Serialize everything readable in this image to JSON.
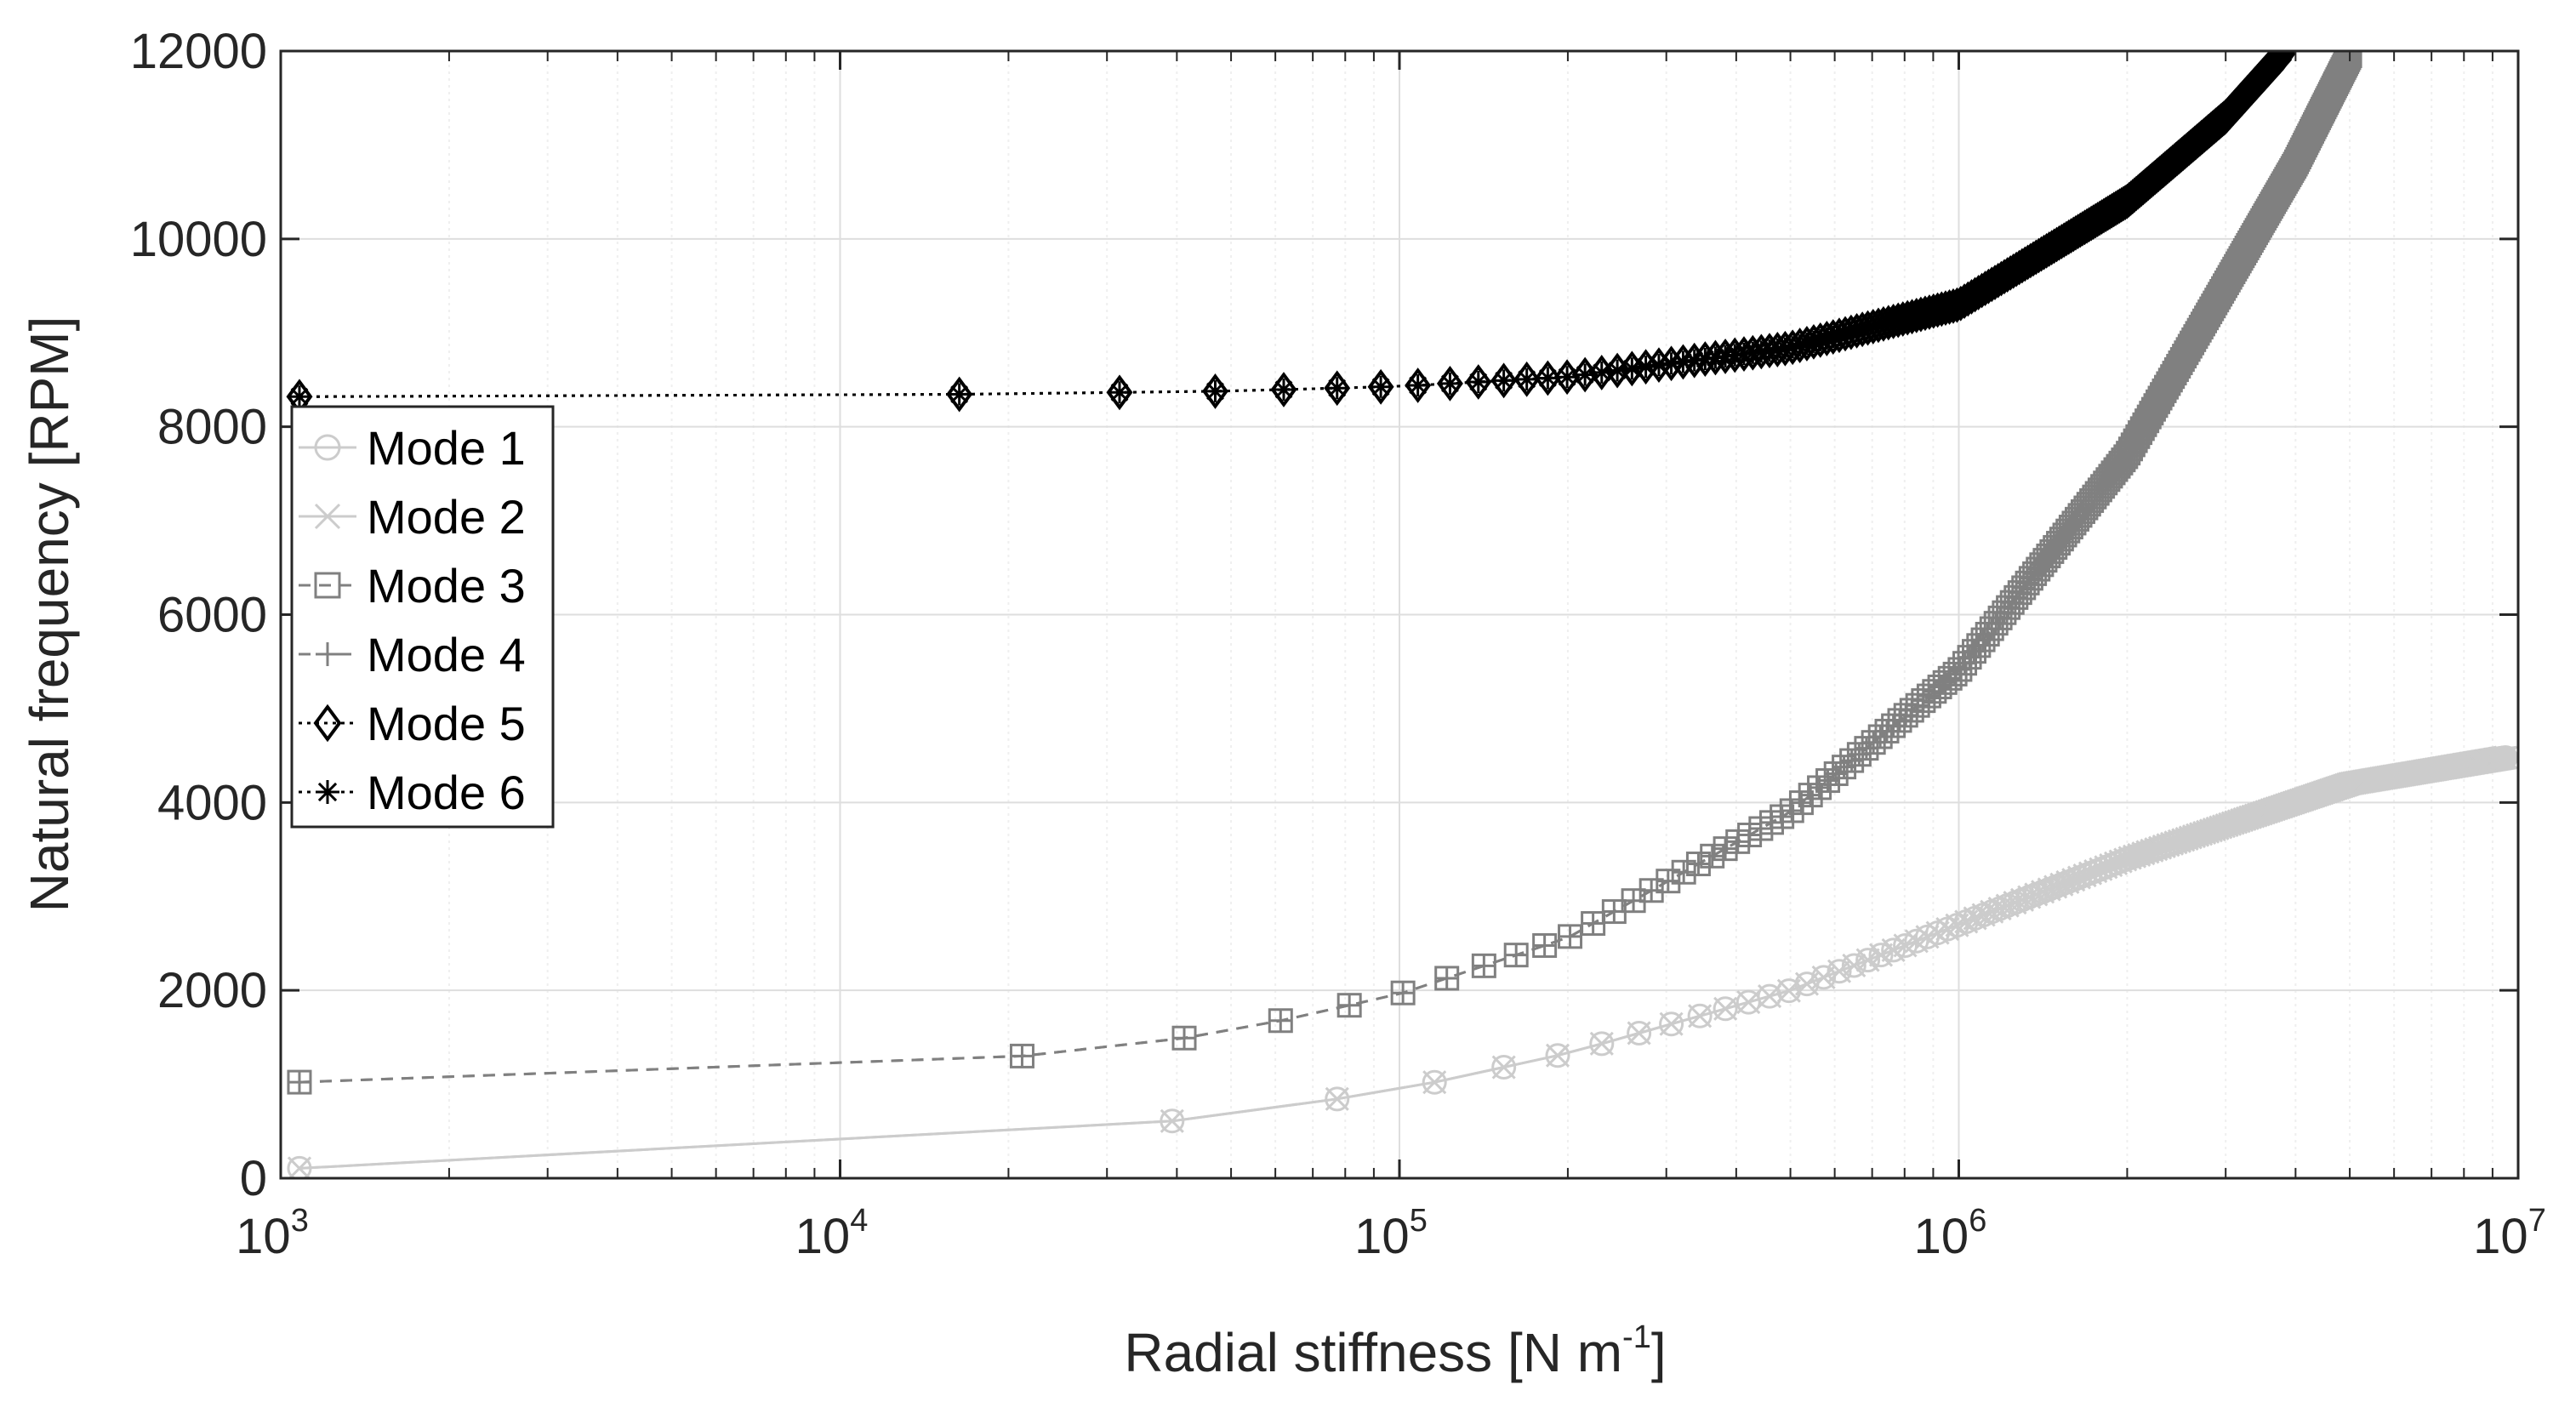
{
  "chart_data": {
    "type": "line",
    "title": "",
    "xlabel": "Radial stiffness [N m",
    "xlabel_exponent": "-1",
    "xlabel_suffix": "]",
    "ylabel": "Natural frequency [RPM]",
    "xscale": "log",
    "xlim": [
      1000,
      10000000
    ],
    "ylim": [
      0,
      12000
    ],
    "grid": true,
    "minor_grid": true,
    "legend_position": "left",
    "x_ticks": [
      {
        "value": 1000,
        "base": "10",
        "exp": "3"
      },
      {
        "value": 10000,
        "base": "10",
        "exp": "4"
      },
      {
        "value": 100000,
        "base": "10",
        "exp": "5"
      },
      {
        "value": 1000000,
        "base": "10",
        "exp": "6"
      },
      {
        "value": 10000000,
        "base": "10",
        "exp": "7"
      }
    ],
    "y_ticks": [
      {
        "value": 0,
        "label": "0"
      },
      {
        "value": 2000,
        "label": "2000"
      },
      {
        "value": 4000,
        "label": "4000"
      },
      {
        "value": 6000,
        "label": "6000"
      },
      {
        "value": 8000,
        "label": "8000"
      },
      {
        "value": 10000,
        "label": "10000"
      },
      {
        "value": 12000,
        "label": "12000"
      }
    ],
    "sample_count": 250,
    "series": [
      {
        "name": "Mode 1",
        "color": "#cccccc",
        "line_style": "solid",
        "marker": "circle",
        "x": [
          1000,
          5000,
          10000,
          30000,
          50000,
          100000,
          200000,
          500000,
          1000000,
          2000000,
          5000000,
          10000000
        ],
        "y": [
          100,
          200,
          280,
          530,
          680,
          940,
          1330,
          2000,
          2700,
          3400,
          4200,
          4500
        ]
      },
      {
        "name": "Mode 2",
        "color": "#cccccc",
        "line_style": "solid",
        "marker": "x",
        "x": [
          1000,
          5000,
          10000,
          30000,
          50000,
          100000,
          200000,
          500000,
          1000000,
          2000000,
          5000000,
          10000000
        ],
        "y": [
          100,
          200,
          280,
          530,
          680,
          940,
          1330,
          2000,
          2700,
          3400,
          4200,
          4500
        ]
      },
      {
        "name": "Mode 3",
        "color": "#808080",
        "line_style": "dashed",
        "marker": "square",
        "x": [
          1000,
          5000,
          10000,
          30000,
          50000,
          100000,
          200000,
          500000,
          1000000,
          2000000,
          4000000,
          5000000
        ],
        "y": [
          1020,
          1070,
          1130,
          1380,
          1560,
          1960,
          2560,
          3900,
          5400,
          7700,
          10800,
          11950
        ]
      },
      {
        "name": "Mode 4",
        "color": "#808080",
        "line_style": "dashed",
        "marker": "plus",
        "x": [
          1000,
          5000,
          10000,
          30000,
          50000,
          100000,
          200000,
          500000,
          1000000,
          2000000,
          4000000,
          5000000
        ],
        "y": [
          1020,
          1070,
          1130,
          1380,
          1560,
          1960,
          2560,
          3900,
          5400,
          7700,
          10800,
          11950
        ]
      },
      {
        "name": "Mode 5",
        "color": "#000000",
        "line_style": "dotted",
        "marker": "diamond",
        "x": [
          1000,
          10000,
          50000,
          100000,
          200000,
          500000,
          1000000,
          2000000,
          3000000,
          3800000
        ],
        "y": [
          8320,
          8330,
          8380,
          8430,
          8530,
          8840,
          9300,
          10400,
          11300,
          11980
        ]
      },
      {
        "name": "Mode 6",
        "color": "#000000",
        "line_style": "dotted",
        "marker": "asterisk",
        "x": [
          1000,
          10000,
          50000,
          100000,
          200000,
          500000,
          1000000,
          2000000,
          3000000,
          3800000
        ],
        "y": [
          8320,
          8330,
          8380,
          8430,
          8530,
          8840,
          9300,
          10400,
          11300,
          11980
        ]
      }
    ]
  }
}
